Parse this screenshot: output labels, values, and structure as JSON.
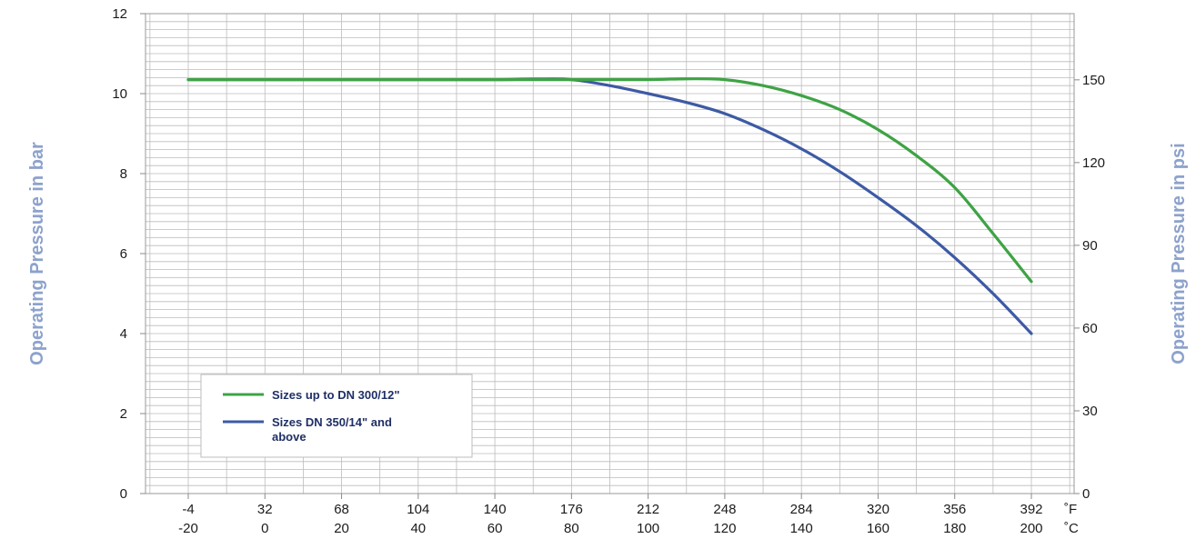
{
  "chart_data": {
    "type": "line",
    "y_left_label": "Operating Pressure in bar",
    "y_right_label": "Operating Pressure in psi",
    "x_unit_f": "˚F",
    "x_unit_c": "˚C",
    "xlim_c": [
      -20,
      200
    ],
    "ylim_left": [
      0,
      12
    ],
    "ylim_right": [
      0,
      174
    ],
    "x_ticks_f": [
      "-4",
      "32",
      "68",
      "104",
      "140",
      "176",
      "212",
      "248",
      "284",
      "320",
      "356",
      "392"
    ],
    "x_ticks_c": [
      "-20",
      "0",
      "20",
      "40",
      "60",
      "80",
      "100",
      "120",
      "140",
      "160",
      "180",
      "200"
    ],
    "y_ticks_left": [
      "0",
      "2",
      "4",
      "6",
      "8",
      "10",
      "12"
    ],
    "y_ticks_right": [
      "0",
      "30",
      "60",
      "90",
      "120",
      "150"
    ],
    "y_right_values": [
      0,
      30,
      60,
      90,
      120,
      150
    ],
    "grid": true,
    "legend_position": "bottom-left",
    "series": [
      {
        "name": "Sizes up to DN 300/12\"",
        "color": "#3ea344",
        "x": [
          -20,
          0,
          20,
          40,
          60,
          70,
          80,
          100,
          110,
          120,
          130,
          140,
          150,
          160,
          170,
          180,
          190,
          200
        ],
        "y": [
          10.35,
          10.35,
          10.35,
          10.35,
          10.35,
          10.35,
          10.35,
          10.35,
          10.37,
          10.35,
          10.2,
          9.95,
          9.6,
          9.1,
          8.45,
          7.65,
          6.5,
          5.3
        ]
      },
      {
        "name": "Sizes DN 350/14\" and above",
        "color": "#3d5aa4",
        "x": [
          -20,
          0,
          20,
          40,
          60,
          70,
          80,
          90,
          100,
          110,
          120,
          130,
          140,
          150,
          160,
          170,
          180,
          190,
          200
        ],
        "y": [
          10.35,
          10.35,
          10.35,
          10.35,
          10.35,
          10.36,
          10.35,
          10.2,
          10.0,
          9.78,
          9.5,
          9.1,
          8.62,
          8.05,
          7.4,
          6.7,
          5.9,
          5.0,
          4.0
        ]
      }
    ]
  }
}
